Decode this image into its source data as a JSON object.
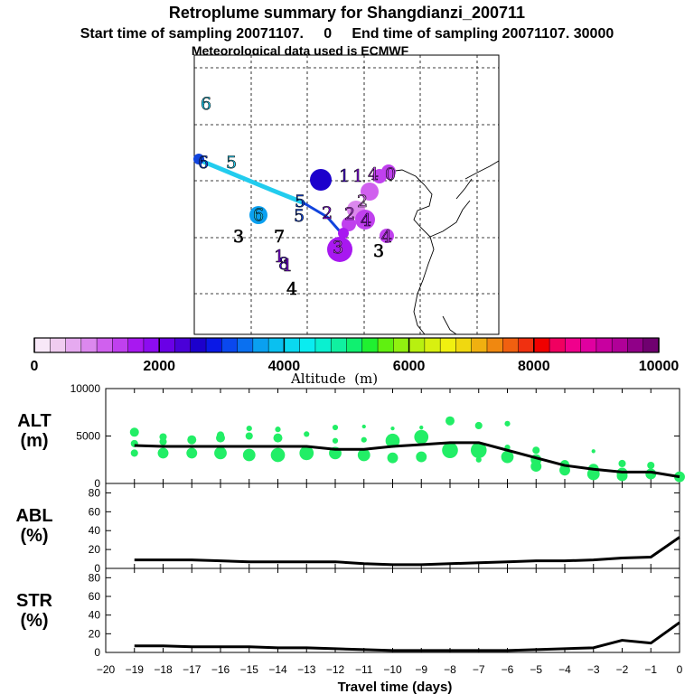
{
  "titles": {
    "line1": "Retroplume summary for Shangdianzi_200711",
    "line2": "Start time of sampling 20071107.     0     End time of sampling 20071107. 30000",
    "line3": "Meteorological data used is ECMWF"
  },
  "colors": {
    "scatter": "#22ee66",
    "line": "#000000",
    "map_track_light": "#22ccee",
    "map_track_dark": "#1144dd"
  },
  "colorbar": {
    "label": "Altitude  (m)",
    "ticks": [
      "0",
      "2000",
      "4000",
      "6000",
      "8000",
      "10000"
    ],
    "colors": [
      "#f8e8f8",
      "#f0ccf0",
      "#e6aaf0",
      "#dc88ee",
      "#d060ee",
      "#c040ee",
      "#a818f0",
      "#8c0cf0",
      "#6a00e6",
      "#4a00d8",
      "#1c00cc",
      "#0a18e6",
      "#0a48ee",
      "#0a70f0",
      "#0aa0f0",
      "#0ac0f0",
      "#0ad8f0",
      "#0aecf0",
      "#0af0d0",
      "#10f0a0",
      "#10f070",
      "#20f030",
      "#60f010",
      "#90f010",
      "#b8f010",
      "#d8f010",
      "#f0f010",
      "#f0d810",
      "#f0b010",
      "#f08810",
      "#f06010",
      "#f03010",
      "#f00000",
      "#f00060",
      "#f0008c",
      "#e000a0",
      "#c800a0",
      "#b00098",
      "#900088",
      "#700070"
    ]
  },
  "map": {
    "numbers": [
      {
        "t": "6",
        "c": "#22ccee"
      },
      {
        "t": "6",
        "c": "#1144dd"
      },
      {
        "t": "5",
        "c": "#22ccee"
      },
      {
        "t": "5",
        "c": "#1144dd"
      },
      {
        "t": "1",
        "c": "#4a00d8"
      },
      {
        "t": "1",
        "c": "#8c0cf0"
      },
      {
        "t": "4",
        "c": "#c040ee"
      },
      {
        "t": "0",
        "c": "#c040ee"
      },
      {
        "t": "2",
        "c": "#dc88ee"
      },
      {
        "t": "2",
        "c": "#c040ee"
      },
      {
        "t": "6",
        "c": "#22ccee"
      },
      {
        "t": "5",
        "c": "#1144dd"
      },
      {
        "t": "2",
        "c": "#8c0cf0"
      },
      {
        "t": "4",
        "c": "#a818f0"
      },
      {
        "t": "3",
        "c": "#d060ee"
      },
      {
        "t": "4",
        "c": "#c040ee"
      },
      {
        "t": "3",
        "c": "#000000"
      },
      {
        "t": "7",
        "c": "#000000"
      },
      {
        "t": "8",
        "c": "#4a00d8"
      },
      {
        "t": "4",
        "c": "#000000"
      },
      {
        "t": "3",
        "c": "#000000"
      },
      {
        "t": "1",
        "c": "#8c0cf0"
      },
      {
        "t": "1",
        "c": "#8c0cf0"
      }
    ]
  },
  "chart_data": [
    {
      "type": "line",
      "name": "ALT",
      "ylabel": "ALT\n(m)",
      "ylabel_lines": [
        "ALT",
        "(m)"
      ],
      "ylim": [
        0,
        10000
      ],
      "yticks": [
        "0",
        "5000",
        "10000"
      ],
      "x": [
        -19,
        -18,
        -17,
        -16,
        -15,
        -14,
        -13,
        -12,
        -11,
        -10,
        -9,
        -8,
        -7,
        -6,
        -5,
        -4,
        -3,
        -2,
        -1,
        0
      ],
      "values": [
        4000,
        3900,
        3900,
        3900,
        3900,
        3900,
        3900,
        3600,
        3600,
        3900,
        4100,
        4300,
        4300,
        3500,
        2700,
        1900,
        1500,
        1200,
        1200,
        700
      ],
      "scatter": [
        {
          "x": -19,
          "y": 5400,
          "s": 4
        },
        {
          "x": -19,
          "y": 4200,
          "s": 3
        },
        {
          "x": -19,
          "y": 3200,
          "s": 3
        },
        {
          "x": -18,
          "y": 4900,
          "s": 3
        },
        {
          "x": -18,
          "y": 4400,
          "s": 3
        },
        {
          "x": -18,
          "y": 3200,
          "s": 5
        },
        {
          "x": -17,
          "y": 4600,
          "s": 4
        },
        {
          "x": -17,
          "y": 3200,
          "s": 5
        },
        {
          "x": -16,
          "y": 5100,
          "s": 3
        },
        {
          "x": -16,
          "y": 4800,
          "s": 4
        },
        {
          "x": -16,
          "y": 3200,
          "s": 6
        },
        {
          "x": -15,
          "y": 5800,
          "s": 2
        },
        {
          "x": -15,
          "y": 5000,
          "s": 3
        },
        {
          "x": -15,
          "y": 3000,
          "s": 6
        },
        {
          "x": -14,
          "y": 5700,
          "s": 2
        },
        {
          "x": -14,
          "y": 4800,
          "s": 4
        },
        {
          "x": -14,
          "y": 3000,
          "s": 7
        },
        {
          "x": -13,
          "y": 5200,
          "s": 2
        },
        {
          "x": -13,
          "y": 3200,
          "s": 7
        },
        {
          "x": -12,
          "y": 5900,
          "s": 2
        },
        {
          "x": -12,
          "y": 4500,
          "s": 2
        },
        {
          "x": -12,
          "y": 3200,
          "s": 6
        },
        {
          "x": -11,
          "y": 6000,
          "s": 1
        },
        {
          "x": -11,
          "y": 4600,
          "s": 2
        },
        {
          "x": -11,
          "y": 3000,
          "s": 6
        },
        {
          "x": -10,
          "y": 5800,
          "s": 1
        },
        {
          "x": -10,
          "y": 4500,
          "s": 7
        },
        {
          "x": -10,
          "y": 2700,
          "s": 5
        },
        {
          "x": -9,
          "y": 5900,
          "s": 1
        },
        {
          "x": -9,
          "y": 4900,
          "s": 7
        },
        {
          "x": -9,
          "y": 2800,
          "s": 5
        },
        {
          "x": -8,
          "y": 6600,
          "s": 4
        },
        {
          "x": -8,
          "y": 3500,
          "s": 8
        },
        {
          "x": -7,
          "y": 6100,
          "s": 3
        },
        {
          "x": -7,
          "y": 4000,
          "s": 2
        },
        {
          "x": -7,
          "y": 3500,
          "s": 8
        },
        {
          "x": -7,
          "y": 2500,
          "s": 2
        },
        {
          "x": -6,
          "y": 6300,
          "s": 2
        },
        {
          "x": -6,
          "y": 3800,
          "s": 2
        },
        {
          "x": -6,
          "y": 2800,
          "s": 6
        },
        {
          "x": -5,
          "y": 3500,
          "s": 3
        },
        {
          "x": -5,
          "y": 2500,
          "s": 5
        },
        {
          "x": -5,
          "y": 1800,
          "s": 5
        },
        {
          "x": -4,
          "y": 2000,
          "s": 4
        },
        {
          "x": -4,
          "y": 1400,
          "s": 5
        },
        {
          "x": -3,
          "y": 3400,
          "s": 1
        },
        {
          "x": -3,
          "y": 1500,
          "s": 5
        },
        {
          "x": -3,
          "y": 1000,
          "s": 6
        },
        {
          "x": -2,
          "y": 2100,
          "s": 3
        },
        {
          "x": -2,
          "y": 1100,
          "s": 5
        },
        {
          "x": -2,
          "y": 800,
          "s": 5
        },
        {
          "x": -1,
          "y": 1900,
          "s": 3
        },
        {
          "x": -1,
          "y": 1000,
          "s": 5
        },
        {
          "x": 0,
          "y": 700,
          "s": 5
        }
      ]
    },
    {
      "type": "line",
      "name": "ABL",
      "ylabel": "ABL\n(%)",
      "ylabel_lines": [
        "ABL",
        "(%)"
      ],
      "ylim": [
        0,
        90
      ],
      "yticks": [
        "0",
        "20",
        "40",
        "60",
        "80"
      ],
      "x": [
        -19,
        -18,
        -17,
        -16,
        -15,
        -14,
        -13,
        -12,
        -11,
        -10,
        -9,
        -8,
        -7,
        -6,
        -5,
        -4,
        -3,
        -2,
        -1,
        0
      ],
      "values": [
        9,
        9,
        9,
        8,
        7,
        7,
        7,
        7,
        5,
        4,
        4,
        5,
        6,
        7,
        8,
        8,
        9,
        11,
        12,
        33
      ]
    },
    {
      "type": "line",
      "name": "STR",
      "ylabel": "STR\n(%)",
      "ylabel_lines": [
        "STR",
        "(%)"
      ],
      "ylim": [
        0,
        90
      ],
      "yticks": [
        "0",
        "20",
        "40",
        "60",
        "80"
      ],
      "x": [
        -19,
        -18,
        -17,
        -16,
        -15,
        -14,
        -13,
        -12,
        -11,
        -10,
        -9,
        -8,
        -7,
        -6,
        -5,
        -4,
        -3,
        -2,
        -1,
        0
      ],
      "values": [
        7,
        7,
        6,
        6,
        6,
        5,
        5,
        4,
        3,
        2,
        2,
        2,
        2,
        2,
        3,
        4,
        5,
        13,
        10,
        32
      ]
    }
  ],
  "xaxis": {
    "label": "Travel time (days)",
    "ticks": [
      "−20",
      "−19",
      "−18",
      "−17",
      "−16",
      "−15",
      "−14",
      "−13",
      "−12",
      "−11",
      "−10",
      "−9",
      "−8",
      "−7",
      "−6",
      "−5",
      "−4",
      "−3",
      "−2",
      "−1",
      "0"
    ]
  }
}
